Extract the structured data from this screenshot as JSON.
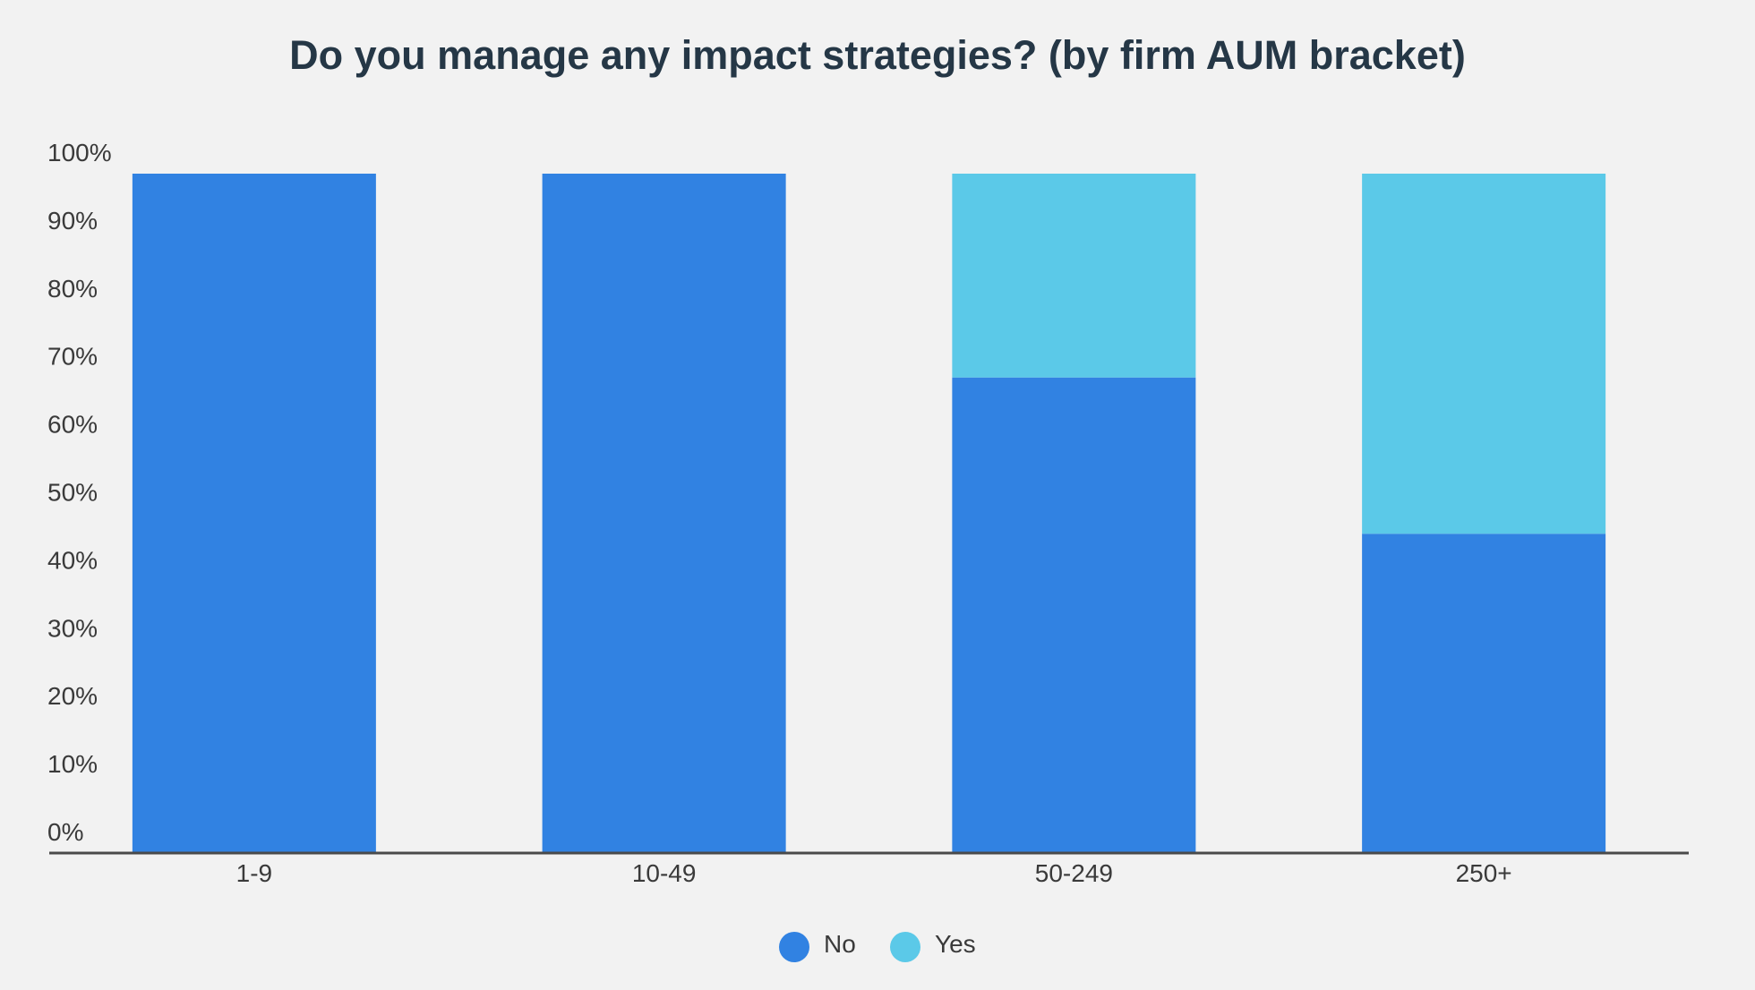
{
  "chart_data": {
    "type": "bar",
    "stacked": true,
    "title": "Do you manage any impact strategies? (by firm AUM bracket)",
    "categories": [
      "1-9",
      "10-49",
      "50-249",
      "250+"
    ],
    "series": [
      {
        "name": "No",
        "color": "#3182e2",
        "values": [
          100,
          100,
          70,
          47
        ]
      },
      {
        "name": "Yes",
        "color": "#5bc9e8",
        "values": [
          0,
          0,
          30,
          53
        ]
      }
    ],
    "ylim": [
      0,
      100
    ],
    "yticks": [
      "0%",
      "10%",
      "20%",
      "30%",
      "40%",
      "50%",
      "60%",
      "70%",
      "80%",
      "90%",
      "100%"
    ],
    "grid": false,
    "legend_position": "bottom-center"
  }
}
